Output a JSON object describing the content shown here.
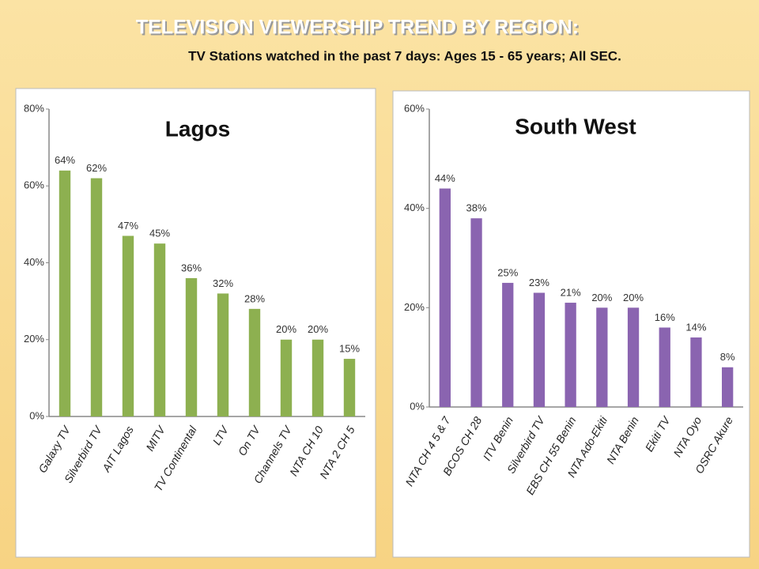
{
  "header": {
    "title": "TELEVISION VIEWERSHIP TREND BY REGION:",
    "subtitle": "TV Stations watched in the past 7 days: Ages 15 - 65 years; All SEC."
  },
  "chart_data": [
    {
      "type": "bar",
      "title": "Lagos",
      "categories": [
        "Galaxy TV",
        "Silverbird TV",
        "AIT Lagos",
        "MITV",
        "TV Continental",
        "LTV",
        "On TV",
        "Channels TV",
        "NTA CH 10",
        "NTA 2 CH 5"
      ],
      "values": [
        64,
        62,
        47,
        45,
        36,
        32,
        28,
        20,
        20,
        15
      ],
      "value_labels": [
        "64%",
        "62%",
        "47%",
        "45%",
        "36%",
        "32%",
        "28%",
        "20%",
        "20%",
        "15%"
      ],
      "color": "#8db050",
      "ylim": [
        0,
        80
      ],
      "yticks": [
        {
          "value": 0,
          "label": "0%"
        },
        {
          "value": 20,
          "label": "20%"
        },
        {
          "value": 40,
          "label": "40%"
        },
        {
          "value": 60,
          "label": "60%"
        },
        {
          "value": 80,
          "label": "80%"
        }
      ],
      "grid": false
    },
    {
      "type": "bar",
      "title": "South West",
      "categories": [
        "NTA CH 4 5 & 7",
        "BCOS CH 28",
        "ITV Benin",
        "Silverbird TV",
        "EBS CH 55 Benin",
        "NTA Ado-Ekiti",
        "NTA Benin",
        "Ekiti TV",
        "NTA Oyo",
        "OSRC Akure"
      ],
      "values": [
        44,
        38,
        25,
        23,
        21,
        20,
        20,
        16,
        14,
        8
      ],
      "value_labels": [
        "44%",
        "38%",
        "25%",
        "23%",
        "21%",
        "20%",
        "20%",
        "16%",
        "14%",
        "8%"
      ],
      "color": "#8a64b0",
      "ylim": [
        0,
        60
      ],
      "yticks": [
        {
          "value": 0,
          "label": "0%"
        },
        {
          "value": 20,
          "label": "20%"
        },
        {
          "value": 40,
          "label": "40%"
        },
        {
          "value": 60,
          "label": "60%"
        }
      ],
      "grid": false
    }
  ]
}
